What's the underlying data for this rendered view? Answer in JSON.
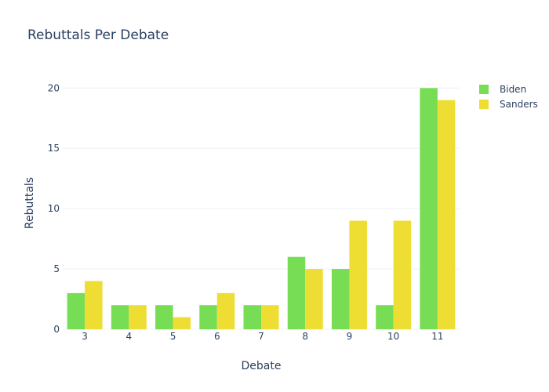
{
  "chart_data": {
    "type": "bar",
    "title": "Rebuttals Per Debate",
    "xlabel": "Debate",
    "ylabel": "Rebuttals",
    "categories": [
      "3",
      "4",
      "5",
      "6",
      "7",
      "8",
      "9",
      "10",
      "11"
    ],
    "series": [
      {
        "name": "Biden",
        "color": "#77dd55",
        "values": [
          3,
          2,
          2,
          2,
          2,
          6,
          5,
          2,
          20
        ]
      },
      {
        "name": "Sanders",
        "color": "#eedd33",
        "values": [
          4,
          2,
          1,
          3,
          2,
          5,
          9,
          9,
          19
        ]
      }
    ],
    "ylim": [
      0,
      22.1
    ],
    "yticks": [
      0,
      5,
      10,
      15,
      20
    ],
    "grid": true,
    "legend": "top-right"
  }
}
